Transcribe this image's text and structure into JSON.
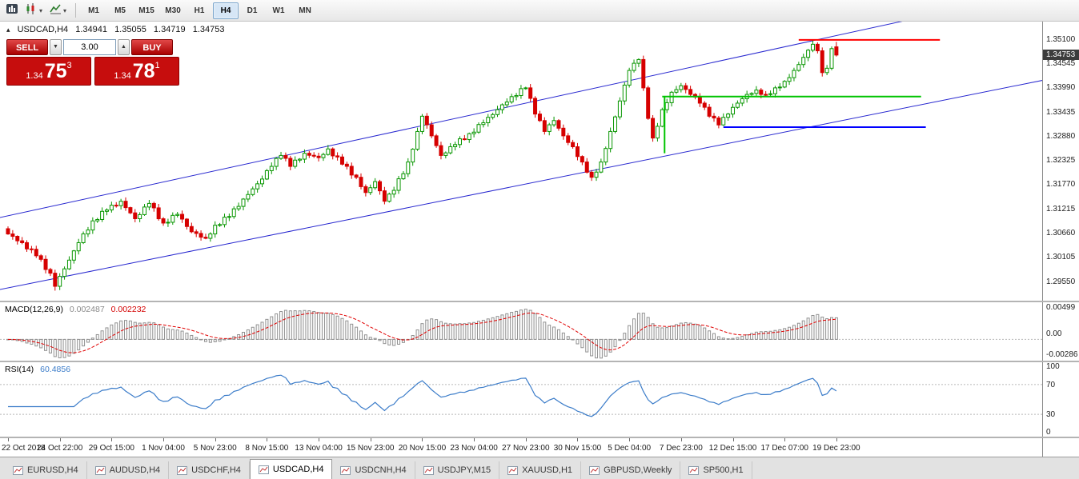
{
  "icons": {
    "collapse": "▴",
    "dropdown": "▾",
    "spin_up": "▲",
    "spin_down": "▼"
  },
  "toolbar": {
    "timeframes": [
      {
        "label": "M1",
        "active": false
      },
      {
        "label": "M5",
        "active": false
      },
      {
        "label": "M15",
        "active": false
      },
      {
        "label": "M30",
        "active": false
      },
      {
        "label": "H1",
        "active": false
      },
      {
        "label": "H4",
        "active": true
      },
      {
        "label": "D1",
        "active": false
      },
      {
        "label": "W1",
        "active": false
      },
      {
        "label": "MN",
        "active": false
      }
    ]
  },
  "symbol_header": {
    "symbol": "USDCAD,H4",
    "open": "1.34941",
    "high": "1.35055",
    "low": "1.34719",
    "close": "1.34753"
  },
  "trade_panel": {
    "sell_label": "SELL",
    "buy_label": "BUY",
    "volume": "3.00",
    "sell_quote": {
      "prefix": "1.34",
      "big": "75",
      "sup": "3"
    },
    "buy_quote": {
      "prefix": "1.34",
      "big": "78",
      "sup": "1"
    }
  },
  "price_axis": {
    "labels": [
      "1.35100",
      "1.34545",
      "1.33990",
      "1.33435",
      "1.32880",
      "1.32325",
      "1.31770",
      "1.31215",
      "1.30660",
      "1.30105",
      "1.29550"
    ],
    "current": "1.34753"
  },
  "time_axis": [
    {
      "i": 0,
      "label": "22 Oct 2018"
    },
    {
      "i": 11,
      "label": "24 Oct 22:00"
    },
    {
      "i": 22,
      "label": "29 Oct 15:00"
    },
    {
      "i": 33,
      "label": "1 Nov 04:00"
    },
    {
      "i": 44,
      "label": "5 Nov 23:00"
    },
    {
      "i": 55,
      "label": "8 Nov 15:00"
    },
    {
      "i": 66,
      "label": "13 Nov 04:00"
    },
    {
      "i": 77,
      "label": "15 Nov 23:00"
    },
    {
      "i": 88,
      "label": "20 Nov 15:00"
    },
    {
      "i": 99,
      "label": "23 Nov 04:00"
    },
    {
      "i": 110,
      "label": "27 Nov 23:00"
    },
    {
      "i": 121,
      "label": "30 Nov 15:00"
    },
    {
      "i": 132,
      "label": "5 Dec 04:00"
    },
    {
      "i": 143,
      "label": "7 Dec 23:00"
    },
    {
      "i": 154,
      "label": "12 Dec 15:00"
    },
    {
      "i": 165,
      "label": "17 Dec 07:00"
    },
    {
      "i": 176,
      "label": "19 Dec 23:00"
    }
  ],
  "indicators": {
    "macd": {
      "label": "MACD(12,26,9)",
      "value_main": "0.002487",
      "value_signal": "0.002232",
      "axis_labels": [
        "0.00499",
        "0.00",
        "-0.00286"
      ]
    },
    "rsi": {
      "label": "RSI(14)",
      "value": "60.4856",
      "axis_labels": [
        "100",
        "70",
        "30",
        "0"
      ],
      "levels": [
        70,
        30
      ]
    }
  },
  "tabs": [
    {
      "label": "EURUSD,H4",
      "active": false
    },
    {
      "label": "AUDUSD,H4",
      "active": false
    },
    {
      "label": "USDCHF,H4",
      "active": false
    },
    {
      "label": "USDCAD,H4",
      "active": true
    },
    {
      "label": "USDCNH,H4",
      "active": false
    },
    {
      "label": "USDJPY,M15",
      "active": false
    },
    {
      "label": "XAUUSD,H1",
      "active": false
    },
    {
      "label": "GBPUSD,Weekly",
      "active": false
    },
    {
      "label": "SP500,H1",
      "active": false
    }
  ],
  "chart_data": {
    "type": "candlestick",
    "symbol": "USDCAD",
    "timeframe": "H4",
    "title": "USDCAD,H4",
    "bars_count": 177,
    "x_range_visible": [
      "22 Oct 2018",
      "19 Dec 2018 23:00"
    ],
    "price_range_visible": [
      1.2912,
      1.3552
    ],
    "price_axis_step": 0.00555,
    "current_bar": {
      "open": 1.34941,
      "high": 1.35055,
      "low": 1.34719,
      "close": 1.34753
    },
    "bid": "1.34753",
    "ask": "1.34781",
    "representation": "swing_points_interpolated",
    "swing_points": [
      [
        0,
        1.3065
      ],
      [
        3,
        1.3045
      ],
      [
        6,
        1.3015
      ],
      [
        9,
        1.2975
      ],
      [
        10,
        1.2945
      ],
      [
        12,
        1.2985
      ],
      [
        15,
        1.3045
      ],
      [
        18,
        1.3095
      ],
      [
        21,
        1.312
      ],
      [
        24,
        1.314
      ],
      [
        27,
        1.31
      ],
      [
        30,
        1.3135
      ],
      [
        33,
        1.309
      ],
      [
        36,
        1.311
      ],
      [
        39,
        1.307
      ],
      [
        42,
        1.3055
      ],
      [
        44,
        1.3085
      ],
      [
        47,
        1.3105
      ],
      [
        50,
        1.3145
      ],
      [
        53,
        1.318
      ],
      [
        56,
        1.322
      ],
      [
        58,
        1.3245
      ],
      [
        60,
        1.322
      ],
      [
        63,
        1.325
      ],
      [
        66,
        1.324
      ],
      [
        68,
        1.326
      ],
      [
        71,
        1.3225
      ],
      [
        74,
        1.3195
      ],
      [
        76,
        1.316
      ],
      [
        78,
        1.3185
      ],
      [
        80,
        1.314
      ],
      [
        82,
        1.3165
      ],
      [
        85,
        1.323
      ],
      [
        87,
        1.33
      ],
      [
        88,
        1.3335
      ],
      [
        90,
        1.329
      ],
      [
        92,
        1.3245
      ],
      [
        95,
        1.327
      ],
      [
        98,
        1.3295
      ],
      [
        101,
        1.332
      ],
      [
        104,
        1.335
      ],
      [
        107,
        1.338
      ],
      [
        110,
        1.34
      ],
      [
        112,
        1.334
      ],
      [
        114,
        1.33
      ],
      [
        116,
        1.3325
      ],
      [
        118,
        1.329
      ],
      [
        120,
        1.3265
      ],
      [
        122,
        1.323
      ],
      [
        124,
        1.3195
      ],
      [
        126,
        1.323
      ],
      [
        128,
        1.33
      ],
      [
        130,
        1.337
      ],
      [
        132,
        1.344
      ],
      [
        134,
        1.3465
      ],
      [
        135,
        1.34
      ],
      [
        136,
        1.333
      ],
      [
        137,
        1.3285
      ],
      [
        139,
        1.335
      ],
      [
        141,
        1.339
      ],
      [
        143,
        1.3405
      ],
      [
        145,
        1.3385
      ],
      [
        147,
        1.3365
      ],
      [
        149,
        1.3335
      ],
      [
        151,
        1.3315
      ],
      [
        153,
        1.334
      ],
      [
        155,
        1.3365
      ],
      [
        157,
        1.3385
      ],
      [
        159,
        1.3395
      ],
      [
        161,
        1.3385
      ],
      [
        163,
        1.34
      ],
      [
        165,
        1.3415
      ],
      [
        167,
        1.344
      ],
      [
        169,
        1.347
      ],
      [
        171,
        1.35
      ],
      [
        172,
        1.3485
      ],
      [
        173,
        1.3435
      ],
      [
        174,
        1.3445
      ],
      [
        175,
        1.349
      ],
      [
        176,
        1.34753
      ]
    ],
    "drawings": {
      "trend_channel": [
        {
          "i1": -2,
          "p1": 1.2937,
          "i2": 228,
          "p2": 1.3435
        },
        {
          "i1": -2,
          "p1": 1.3102,
          "i2": 228,
          "p2": 1.3642
        }
      ],
      "hlines": [
        {
          "price": 1.351,
          "i1": 168,
          "i2": 198,
          "color": "#ff0000",
          "width": 2
        },
        {
          "price": 1.338,
          "i1": 139,
          "i2": 194,
          "color": "#00c400",
          "width": 2
        },
        {
          "price": 1.331,
          "i1": 152,
          "i2": 195,
          "color": "#0000ff",
          "width": 2
        }
      ],
      "vlines": [
        {
          "i": 139.5,
          "p1": 1.338,
          "p2": 1.325,
          "color": "#00c400",
          "width": 2
        }
      ]
    },
    "colors": {
      "bull_body": "#ffffff",
      "bull_outline": "#089600",
      "bear": "#d60000",
      "channel": "#2a2ad0",
      "macd_hist": "#909090",
      "macd_signal": "#e00000",
      "rsi_line": "#3b7cc9",
      "resistance": "#ff0000",
      "support_green": "#00c400",
      "support_blue": "#0000ff"
    },
    "indicators": {
      "macd": {
        "fast": 12,
        "slow": 26,
        "signal": 9,
        "last_main": 0.002487,
        "last_signal": 0.002232
      },
      "rsi": {
        "period": 14,
        "last": 60.4856
      }
    }
  }
}
